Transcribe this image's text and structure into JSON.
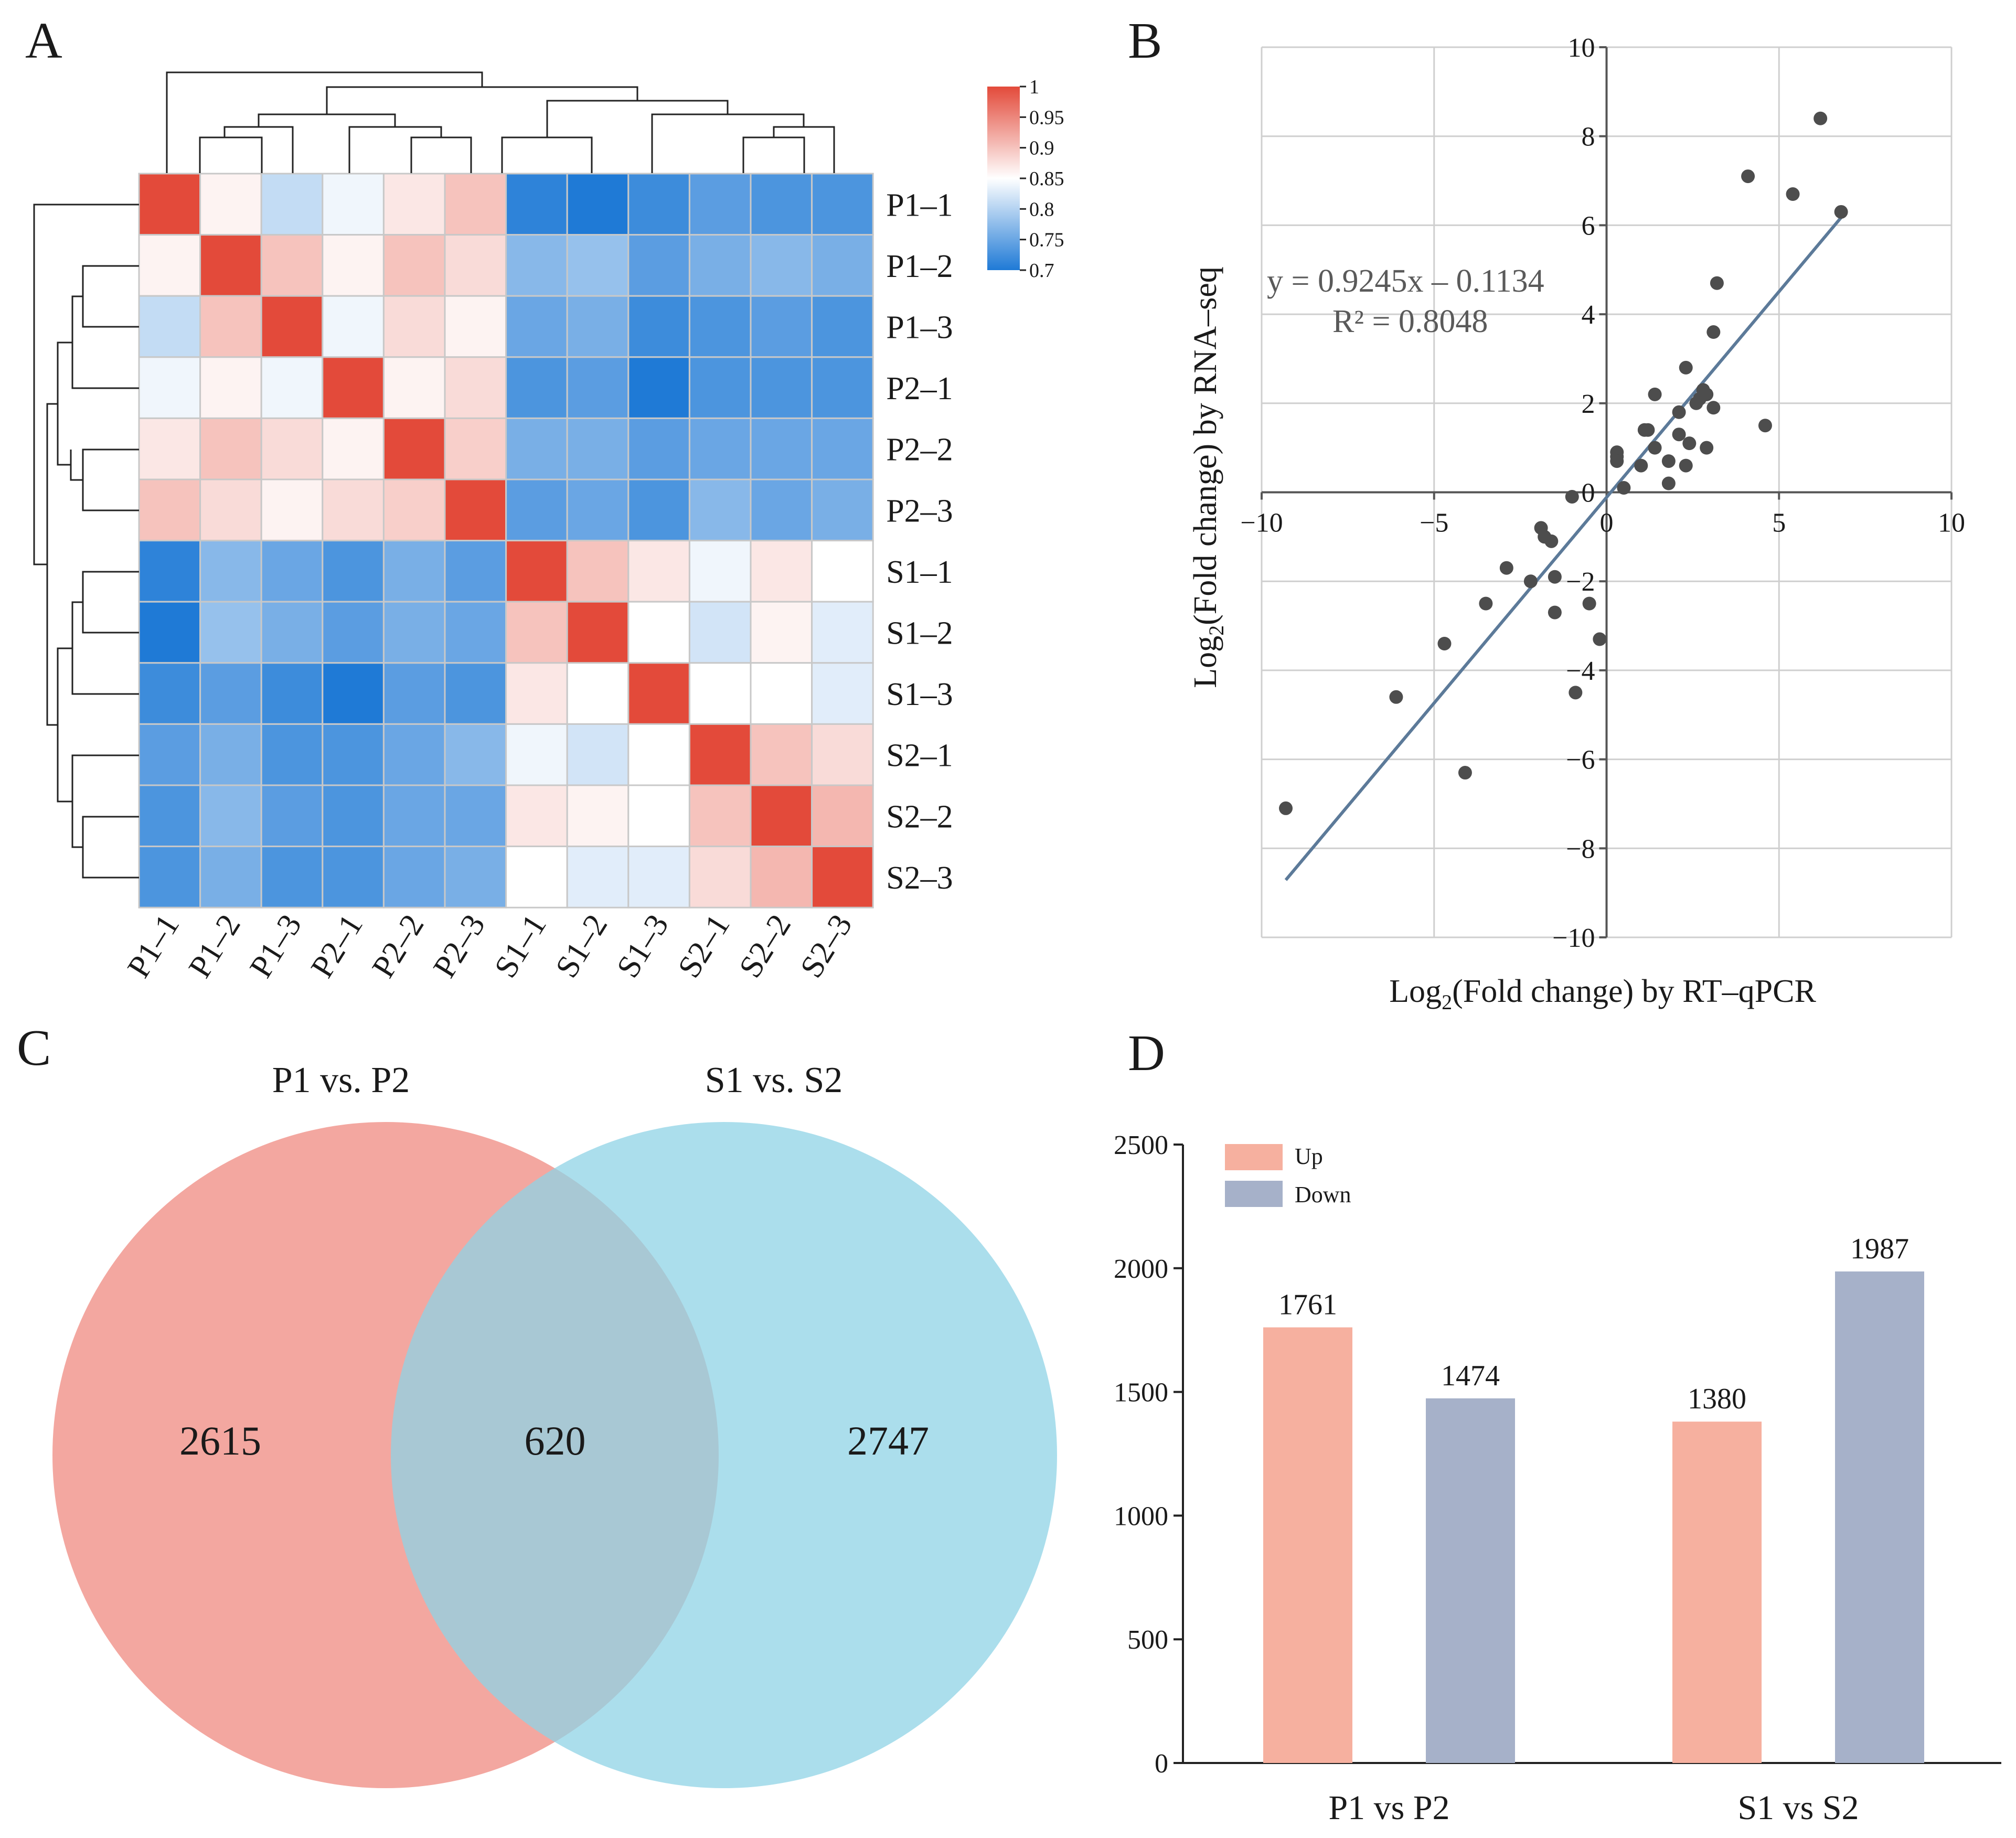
{
  "panels": {
    "a": "A",
    "b": "B",
    "c": "C",
    "d": "D"
  },
  "colors": {
    "heat_high": "#e34a3a",
    "heat_mid": "#ffffff",
    "heat_low": "#1f7ad6",
    "venn_left": "#ef8a80",
    "venn_right": "#8fd3e5",
    "bar_up": "#f6b09f",
    "bar_down": "#a6b1c9",
    "point": "#4d4d4d",
    "trend": "#5c7a99"
  },
  "chart_data": [
    {
      "type": "heatmap",
      "panel": "A",
      "title": "",
      "row_labels": [
        "P1–1",
        "P1–2",
        "P1–3",
        "P2–1",
        "P2–2",
        "P2–3",
        "S1–1",
        "S1–2",
        "S1–3",
        "S2–1",
        "S2–2",
        "S2–3"
      ],
      "col_labels": [
        "P1–1",
        "P1–2",
        "P1–3",
        "P2–1",
        "P2–2",
        "P2–3",
        "S1–1",
        "S1–2",
        "S1–3",
        "S2–1",
        "S2–2",
        "S2–3"
      ],
      "values": [
        [
          1.0,
          0.86,
          0.81,
          0.84,
          0.87,
          0.9,
          0.71,
          0.7,
          0.72,
          0.74,
          0.73,
          0.73
        ],
        [
          0.86,
          1.0,
          0.9,
          0.86,
          0.9,
          0.88,
          0.77,
          0.78,
          0.74,
          0.76,
          0.77,
          0.76
        ],
        [
          0.81,
          0.9,
          1.0,
          0.84,
          0.88,
          0.86,
          0.75,
          0.76,
          0.72,
          0.73,
          0.74,
          0.73
        ],
        [
          0.84,
          0.86,
          0.84,
          1.0,
          0.86,
          0.88,
          0.73,
          0.74,
          0.7,
          0.73,
          0.73,
          0.73
        ],
        [
          0.87,
          0.9,
          0.88,
          0.86,
          1.0,
          0.89,
          0.76,
          0.76,
          0.74,
          0.75,
          0.75,
          0.75
        ],
        [
          0.9,
          0.88,
          0.86,
          0.88,
          0.89,
          1.0,
          0.74,
          0.75,
          0.73,
          0.77,
          0.75,
          0.76
        ],
        [
          0.71,
          0.77,
          0.75,
          0.73,
          0.76,
          0.74,
          1.0,
          0.9,
          0.87,
          0.84,
          0.87,
          0.85
        ],
        [
          0.7,
          0.78,
          0.76,
          0.74,
          0.76,
          0.75,
          0.9,
          1.0,
          0.85,
          0.82,
          0.86,
          0.83
        ],
        [
          0.72,
          0.74,
          0.72,
          0.7,
          0.74,
          0.73,
          0.87,
          0.85,
          1.0,
          0.85,
          0.85,
          0.83
        ],
        [
          0.74,
          0.76,
          0.73,
          0.73,
          0.75,
          0.77,
          0.84,
          0.82,
          0.85,
          1.0,
          0.9,
          0.88
        ],
        [
          0.73,
          0.77,
          0.74,
          0.73,
          0.75,
          0.75,
          0.87,
          0.86,
          0.85,
          0.9,
          1.0,
          0.91
        ],
        [
          0.73,
          0.76,
          0.73,
          0.73,
          0.75,
          0.76,
          0.85,
          0.83,
          0.83,
          0.88,
          0.91,
          1.0
        ]
      ],
      "color_range": [
        0.7,
        1
      ],
      "colorbar_ticks": [
        "1",
        "0.95",
        "0.9",
        "0.85",
        "0.8",
        "0.75",
        "0.7"
      ]
    },
    {
      "type": "scatter",
      "panel": "B",
      "xlabel_pre": "Log",
      "xlabel_sub": "2",
      "xlabel_post": "(Fold change) by RT–qPCR",
      "ylabel_pre": "Log",
      "ylabel_sub": "2",
      "ylabel_post": "(Fold change) by RNA–seq",
      "xlim": [
        -10,
        10
      ],
      "ylim": [
        -10,
        10
      ],
      "x_ticks": [
        "−10",
        "−5",
        "0",
        "5",
        "10"
      ],
      "y_ticks": [
        "10",
        "8",
        "6",
        "4",
        "2",
        "0",
        "−2",
        "−4",
        "−6",
        "−8",
        "−10"
      ],
      "equation": "y = 0.9245x – 0.1134",
      "r_squared": "R² = 0.8048",
      "trendline": {
        "slope": 0.9245,
        "intercept": -0.1134,
        "x_range": [
          -9.3,
          6.8
        ]
      },
      "points": [
        [
          -9.3,
          -7.1
        ],
        [
          -6.1,
          -4.6
        ],
        [
          -4.7,
          -3.4
        ],
        [
          -4.1,
          -6.3
        ],
        [
          -3.5,
          -2.5
        ],
        [
          -2.9,
          -1.7
        ],
        [
          -2.2,
          -2.0
        ],
        [
          -1.9,
          -0.8
        ],
        [
          -1.8,
          -1.0
        ],
        [
          -1.6,
          -1.1
        ],
        [
          -1.5,
          -1.9
        ],
        [
          -1.5,
          -2.7
        ],
        [
          -1.0,
          -0.1
        ],
        [
          -0.9,
          -4.5
        ],
        [
          -0.5,
          -2.5
        ],
        [
          -0.2,
          -3.3
        ],
        [
          0.3,
          0.8
        ],
        [
          0.3,
          0.9
        ],
        [
          0.3,
          0.7
        ],
        [
          0.5,
          0.1
        ],
        [
          1.0,
          0.6
        ],
        [
          1.1,
          1.4
        ],
        [
          1.2,
          1.4
        ],
        [
          1.4,
          1.0
        ],
        [
          1.4,
          2.2
        ],
        [
          1.8,
          0.7
        ],
        [
          1.8,
          0.2
        ],
        [
          2.1,
          1.8
        ],
        [
          2.1,
          1.3
        ],
        [
          2.3,
          2.8
        ],
        [
          2.3,
          0.6
        ],
        [
          2.4,
          1.1
        ],
        [
          2.6,
          2.0
        ],
        [
          2.7,
          2.1
        ],
        [
          2.9,
          2.2
        ],
        [
          2.9,
          1.0
        ],
        [
          3.1,
          1.9
        ],
        [
          3.1,
          3.6
        ],
        [
          3.2,
          4.7
        ],
        [
          4.1,
          7.1
        ],
        [
          4.6,
          1.5
        ],
        [
          5.4,
          6.7
        ],
        [
          6.2,
          8.4
        ],
        [
          6.8,
          6.3
        ],
        [
          2.8,
          2.3
        ]
      ]
    },
    {
      "type": "venn",
      "panel": "C",
      "sets": [
        {
          "name": "P1 vs. P2",
          "only": 2615
        },
        {
          "name": "S1 vs. S2",
          "only": 2747
        }
      ],
      "intersection": 620,
      "labels": {
        "left": "2615",
        "middle": "620",
        "right": "2747"
      }
    },
    {
      "type": "bar",
      "panel": "D",
      "categories": [
        "P1 vs P2",
        "S1 vs S2"
      ],
      "series": [
        {
          "name": "Up",
          "values": [
            1761,
            1380
          ]
        },
        {
          "name": "Down",
          "values": [
            1474,
            1987
          ]
        }
      ],
      "data_labels": [
        [
          "1761",
          "1380"
        ],
        [
          "1474",
          "1987"
        ]
      ],
      "ylim": [
        0,
        2500
      ],
      "y_ticks": [
        "0",
        "500",
        "1000",
        "1500",
        "2000",
        "2500"
      ],
      "legend": "top-left"
    }
  ]
}
